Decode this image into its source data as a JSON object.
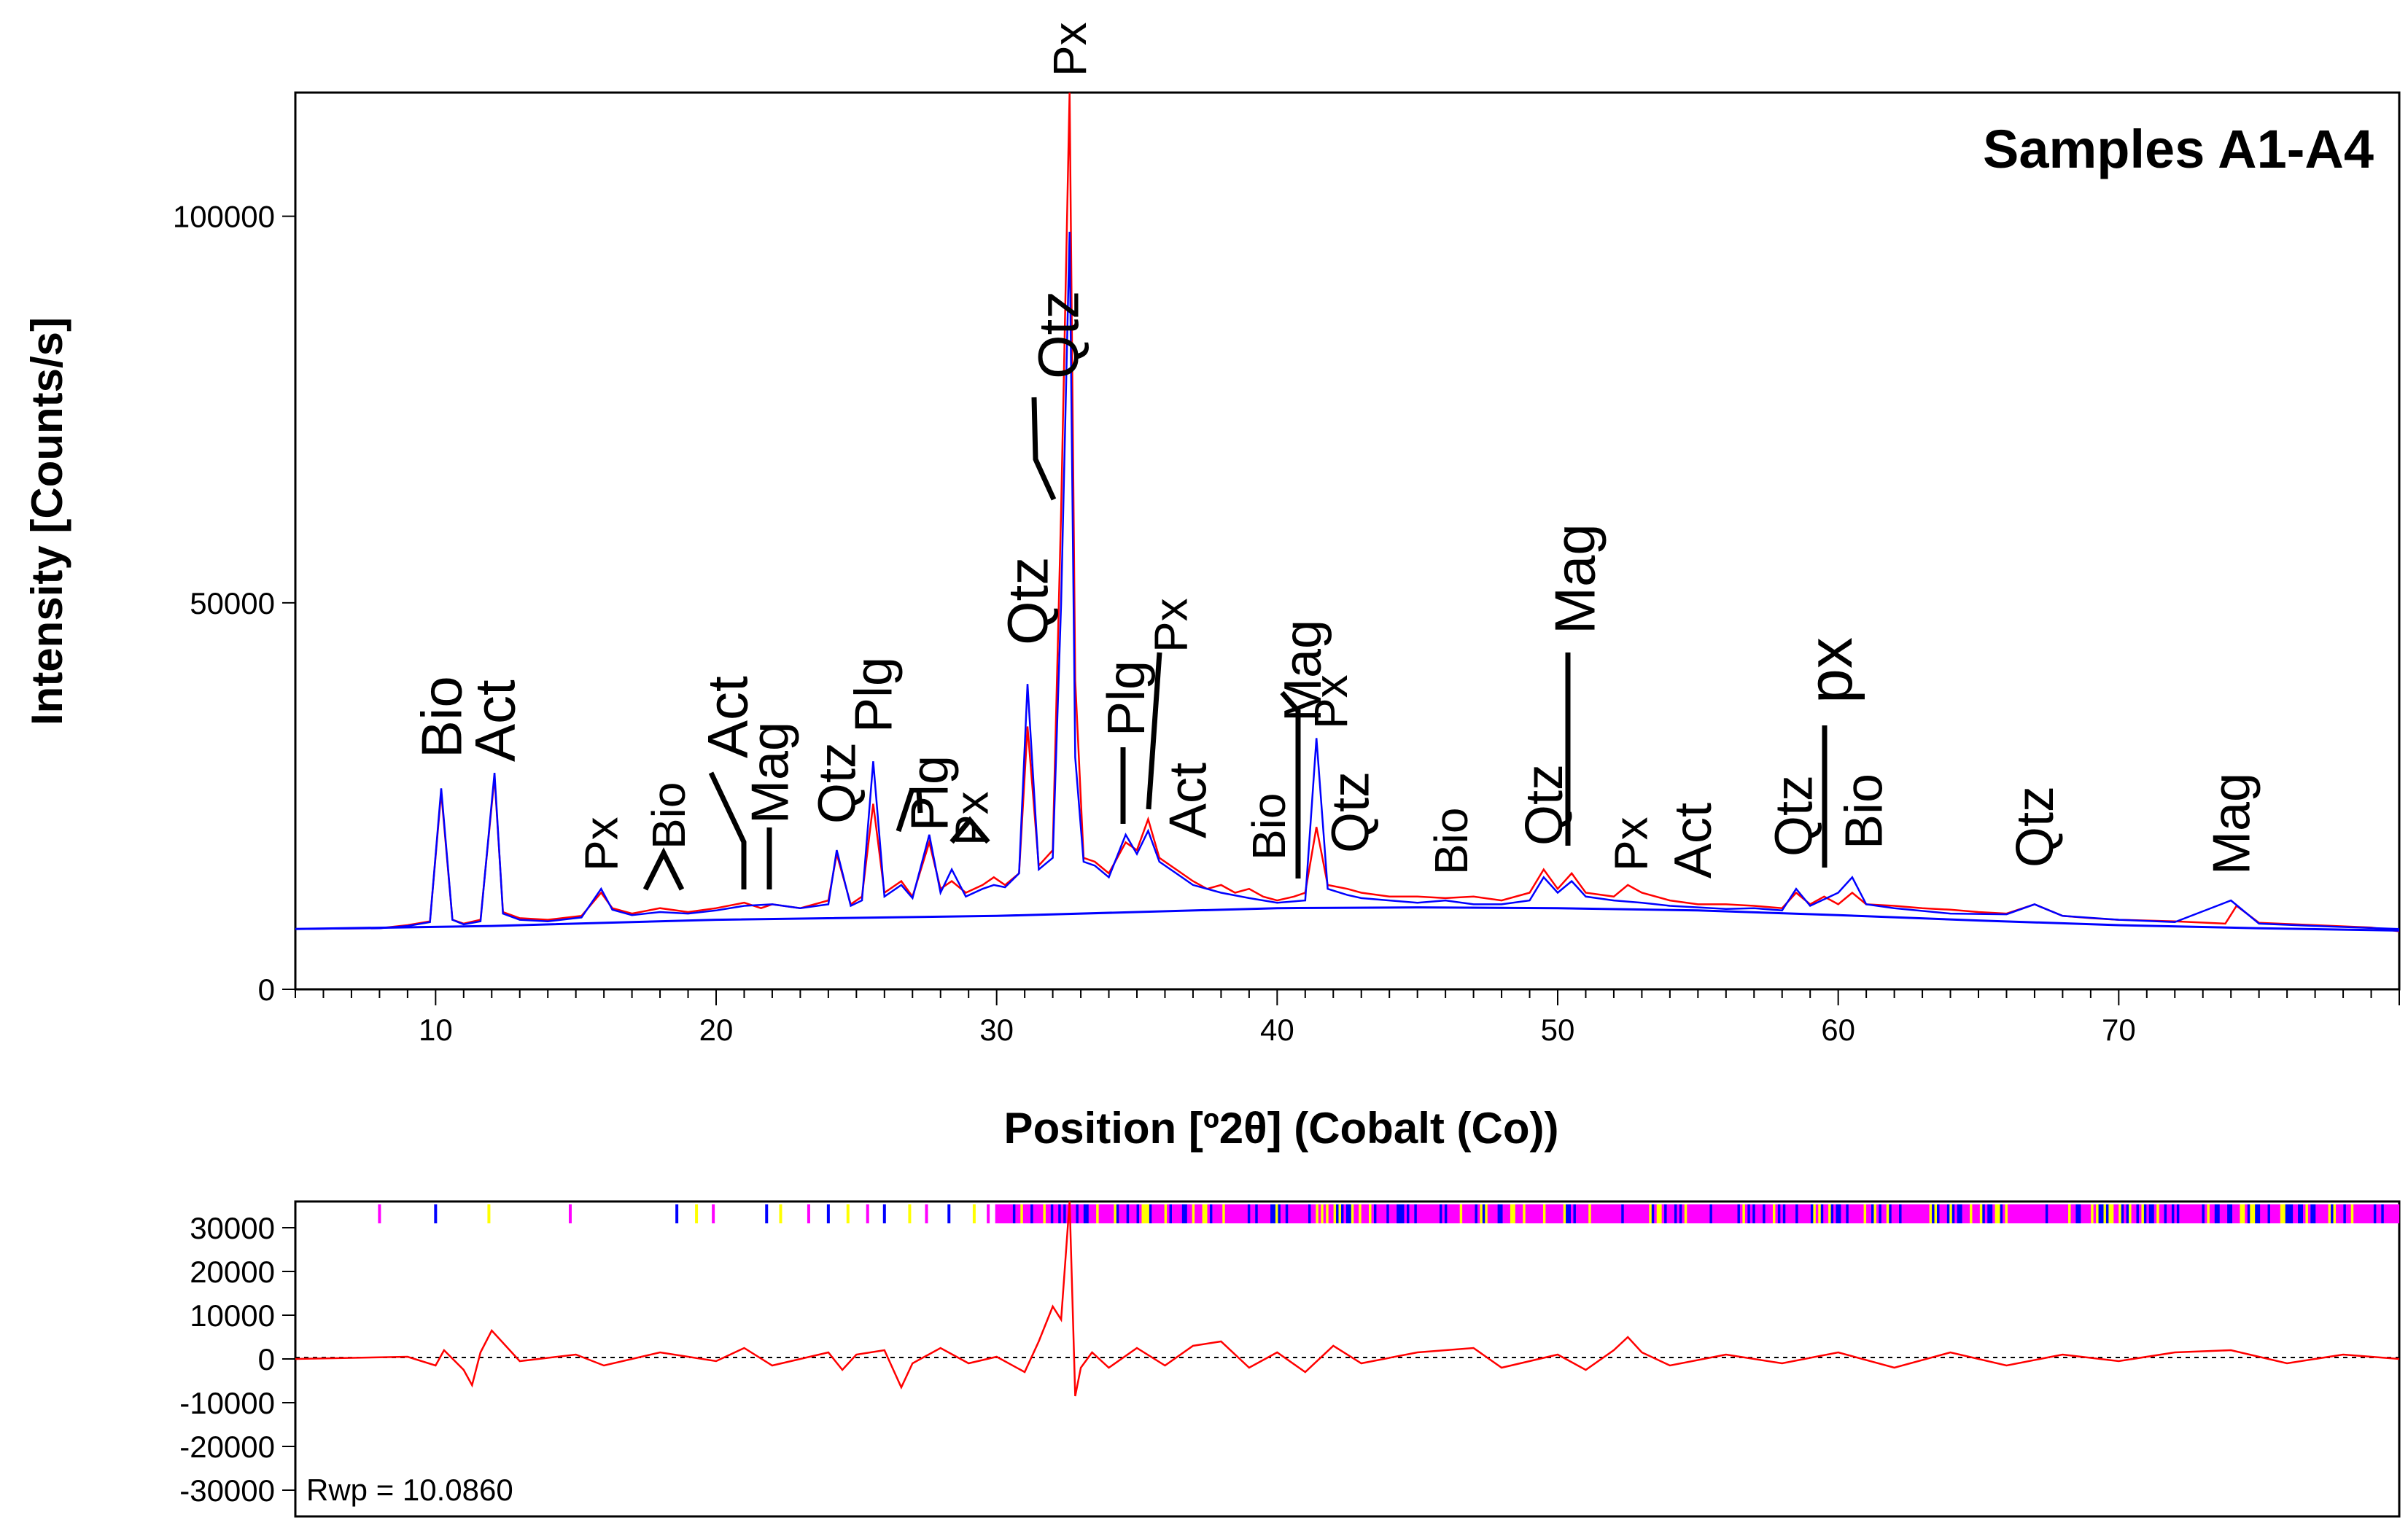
{
  "chart_data": [
    {
      "type": "line",
      "title": "Samples A1-A4",
      "xlabel": "Position [º2θ] (Cobalt (Co))",
      "ylabel": "Intensity [Counts/s]",
      "xlim": [
        5,
        80
      ],
      "ylim": [
        0,
        116000
      ],
      "x_ticks": [
        10,
        20,
        30,
        40,
        50,
        60,
        70
      ],
      "y_ticks": [
        0,
        50000,
        100000
      ],
      "series": [
        {
          "color": "#ff0000",
          "x": [
            5,
            8,
            9,
            9.8,
            10.2,
            10.6,
            11,
            11.6,
            12.1,
            12.4,
            13,
            14,
            15.2,
            15.9,
            16.3,
            17,
            18,
            19,
            20,
            21,
            21.6,
            22,
            23,
            24,
            24.3,
            24.8,
            25.2,
            25.6,
            26,
            26.6,
            27,
            27.6,
            28,
            28.4,
            28.9,
            29.5,
            29.9,
            30.3,
            30.8,
            31.1,
            31.5,
            32,
            32.3,
            32.6,
            32.8,
            33.1,
            33.5,
            34,
            34.6,
            35,
            35.4,
            35.8,
            36.4,
            37,
            37.5,
            38,
            38.5,
            39,
            39.5,
            40,
            40.6,
            41,
            41.4,
            41.8,
            42.5,
            43,
            44,
            45,
            46,
            47,
            48,
            49,
            49.5,
            50,
            50.5,
            51,
            52,
            52.5,
            53,
            54,
            55,
            56,
            57,
            58,
            58.5,
            59,
            59.5,
            60,
            60.5,
            61,
            62,
            63,
            64,
            65,
            66,
            67,
            68,
            69,
            70,
            72,
            73.8,
            74.2,
            75,
            77,
            79,
            80
          ],
          "y": [
            7800,
            7900,
            8300,
            8800,
            25500,
            9000,
            8500,
            9000,
            27500,
            10000,
            9200,
            9000,
            9500,
            12500,
            10500,
            9800,
            10500,
            10000,
            10500,
            11200,
            10500,
            11000,
            10500,
            11500,
            17500,
            11000,
            12000,
            24000,
            12500,
            14000,
            12000,
            19000,
            13000,
            14000,
            12500,
            13500,
            14500,
            13500,
            15000,
            34000,
            16000,
            18000,
            62000,
            116000,
            40000,
            17000,
            16500,
            15000,
            19000,
            18000,
            22000,
            17000,
            15500,
            14000,
            13000,
            13500,
            12500,
            13000,
            12000,
            11500,
            12000,
            12500,
            21000,
            13500,
            13000,
            12500,
            12000,
            12000,
            11800,
            12000,
            11500,
            12500,
            15500,
            13000,
            15000,
            12500,
            12000,
            13500,
            12500,
            11500,
            11000,
            11000,
            10800,
            10500,
            12500,
            11000,
            12000,
            11000,
            12500,
            11000,
            10800,
            10500,
            10300,
            10000,
            9800,
            11000,
            9500,
            9200,
            9000,
            8800,
            8500,
            10800,
            8600,
            8300,
            8000,
            7500
          ]
        },
        {
          "color": "#0000ff",
          "x": [
            5,
            8,
            9,
            9.8,
            10.2,
            10.6,
            11,
            11.6,
            12.1,
            12.4,
            13,
            14,
            15.2,
            15.9,
            16.3,
            17,
            18,
            19,
            20,
            21,
            22,
            23,
            24,
            24.3,
            24.8,
            25.2,
            25.6,
            26,
            26.6,
            27,
            27.6,
            28,
            28.4,
            28.9,
            29.5,
            29.9,
            30.3,
            30.8,
            31.1,
            31.5,
            32,
            32.3,
            32.6,
            32.8,
            33.1,
            33.5,
            34,
            34.6,
            35,
            35.4,
            35.8,
            36.4,
            37,
            38,
            39,
            40,
            41,
            41.4,
            41.8,
            42.5,
            43,
            44,
            45,
            46,
            47,
            48,
            49,
            49.5,
            50,
            50.5,
            51,
            52,
            53,
            54,
            55,
            56,
            57,
            58,
            58.5,
            59,
            60,
            60.5,
            61,
            62,
            64,
            66,
            67,
            68,
            70,
            72,
            74,
            75,
            77,
            80
          ],
          "y": [
            7800,
            7900,
            8200,
            8700,
            26000,
            9000,
            8400,
            8800,
            28000,
            9800,
            9000,
            8800,
            9300,
            13000,
            10300,
            9600,
            10000,
            9800,
            10200,
            10800,
            11000,
            10500,
            11000,
            18000,
            10800,
            11500,
            29500,
            12000,
            13500,
            11800,
            20000,
            12500,
            15500,
            12000,
            13000,
            13500,
            13200,
            15000,
            39500,
            15500,
            17000,
            50000,
            98000,
            30000,
            16500,
            16000,
            14500,
            20000,
            17500,
            20500,
            16500,
            15000,
            13500,
            12500,
            11800,
            11200,
            11500,
            32500,
            13000,
            12200,
            11800,
            11500,
            11200,
            11500,
            11000,
            11000,
            11500,
            14500,
            12500,
            14000,
            12000,
            11500,
            11200,
            10800,
            10600,
            10400,
            10500,
            10200,
            13000,
            10800,
            12500,
            14500,
            11000,
            10500,
            9800,
            9700,
            11000,
            9500,
            9000,
            8700,
            11500,
            8500,
            8200,
            7800
          ]
        },
        {
          "color": "#0000ff",
          "x": [
            5,
            12,
            20,
            30,
            35,
            40,
            45,
            50,
            55,
            60,
            65,
            70,
            75,
            80
          ],
          "y": [
            7800,
            8200,
            9000,
            9500,
            10000,
            10500,
            10600,
            10500,
            10200,
            9600,
            8900,
            8300,
            7900,
            7600
          ]
        }
      ],
      "peak_labels": [
        {
          "text": "Bio",
          "x": 10.2
        },
        {
          "text": "Act",
          "x": 12.1
        },
        {
          "text": "Px",
          "x": 15.9
        },
        {
          "text": "Bio",
          "x": 18.3
        },
        {
          "text": "Act",
          "x": 20.4
        },
        {
          "text": "Mag",
          "x": 21.9
        },
        {
          "text": "Qtz",
          "x": 24.3
        },
        {
          "text": "Plg",
          "x": 25.6
        },
        {
          "text": "Plg",
          "x": 27.6
        },
        {
          "text": "Px",
          "x": 29.1
        },
        {
          "text": "Qtz",
          "x": 31.1
        },
        {
          "text": "Qtz",
          "x": 32.2
        },
        {
          "text": "Px",
          "x": 32.6
        },
        {
          "text": "Plg",
          "x": 34.6
        },
        {
          "text": "Px",
          "x": 36.2
        },
        {
          "text": "Act",
          "x": 36.8
        },
        {
          "text": "Bio",
          "x": 39.7
        },
        {
          "text": "Mag",
          "x": 40.9
        },
        {
          "text": "Px",
          "x": 41.9
        },
        {
          "text": "Qtz",
          "x": 42.6
        },
        {
          "text": "Bio",
          "x": 46.2
        },
        {
          "text": "Qtz",
          "x": 49.5
        },
        {
          "text": "Mag",
          "x": 50.6
        },
        {
          "text": "Px",
          "x": 52.6
        },
        {
          "text": "Act",
          "x": 54.8
        },
        {
          "text": "Qtz",
          "x": 58.4
        },
        {
          "text": "px",
          "x": 59.7
        },
        {
          "text": "Bio",
          "x": 60.9
        },
        {
          "text": "Qtz",
          "x": 67.0
        },
        {
          "text": "Mag",
          "x": 74.0
        }
      ]
    },
    {
      "type": "line",
      "xlim": [
        5,
        80
      ],
      "ylim": [
        -36000,
        36000
      ],
      "y_ticks": [
        30000,
        20000,
        10000,
        0,
        -10000,
        -20000,
        -30000
      ],
      "annotation": "Rwp = 10.0860",
      "series": [
        {
          "color": "#ff0000",
          "x": [
            5,
            9,
            10,
            10.3,
            11,
            11.3,
            11.6,
            12,
            13,
            15,
            16,
            18,
            20,
            21,
            22,
            24,
            24.5,
            25,
            26,
            26.6,
            27,
            28,
            29,
            30,
            31,
            31.5,
            32,
            32.3,
            32.6,
            32.8,
            33,
            33.4,
            34,
            35,
            36,
            37,
            38,
            39,
            40,
            41,
            42,
            43,
            45,
            47,
            48,
            50,
            51,
            52,
            52.5,
            53,
            54,
            56,
            58,
            60,
            62,
            64,
            66,
            68,
            70,
            72,
            74,
            76,
            78,
            80
          ],
          "y": [
            0,
            500,
            -1500,
            2000,
            -2500,
            -6000,
            1500,
            6500,
            -500,
            1000,
            -1500,
            1500,
            -500,
            2500,
            -1500,
            1500,
            -2500,
            1000,
            2000,
            -6500,
            -1000,
            2500,
            -1000,
            500,
            -3000,
            4000,
            12000,
            9000,
            36000,
            -8500,
            -2000,
            1500,
            -2000,
            2500,
            -1500,
            3000,
            4000,
            -2000,
            1500,
            -3000,
            3000,
            -1000,
            1500,
            2500,
            -2000,
            1000,
            -2500,
            2000,
            5000,
            1500,
            -1500,
            1000,
            -1000,
            1500,
            -2000,
            1500,
            -1500,
            1000,
            -500,
            1500,
            2000,
            -1000,
            1000,
            0
          ]
        }
      ],
      "reference_ticks": {
        "colors": [
          "#ff00ff",
          "#0000ff",
          "#ffff00"
        ],
        "positions": [
          8.0,
          10.0,
          11.9,
          14.8,
          18.6,
          19.3,
          19.9,
          21.8,
          22.3,
          23.3,
          24.0,
          24.7,
          25.4,
          26.0,
          26.9,
          27.5,
          28.3,
          29.2,
          29.7
        ]
      }
    }
  ]
}
